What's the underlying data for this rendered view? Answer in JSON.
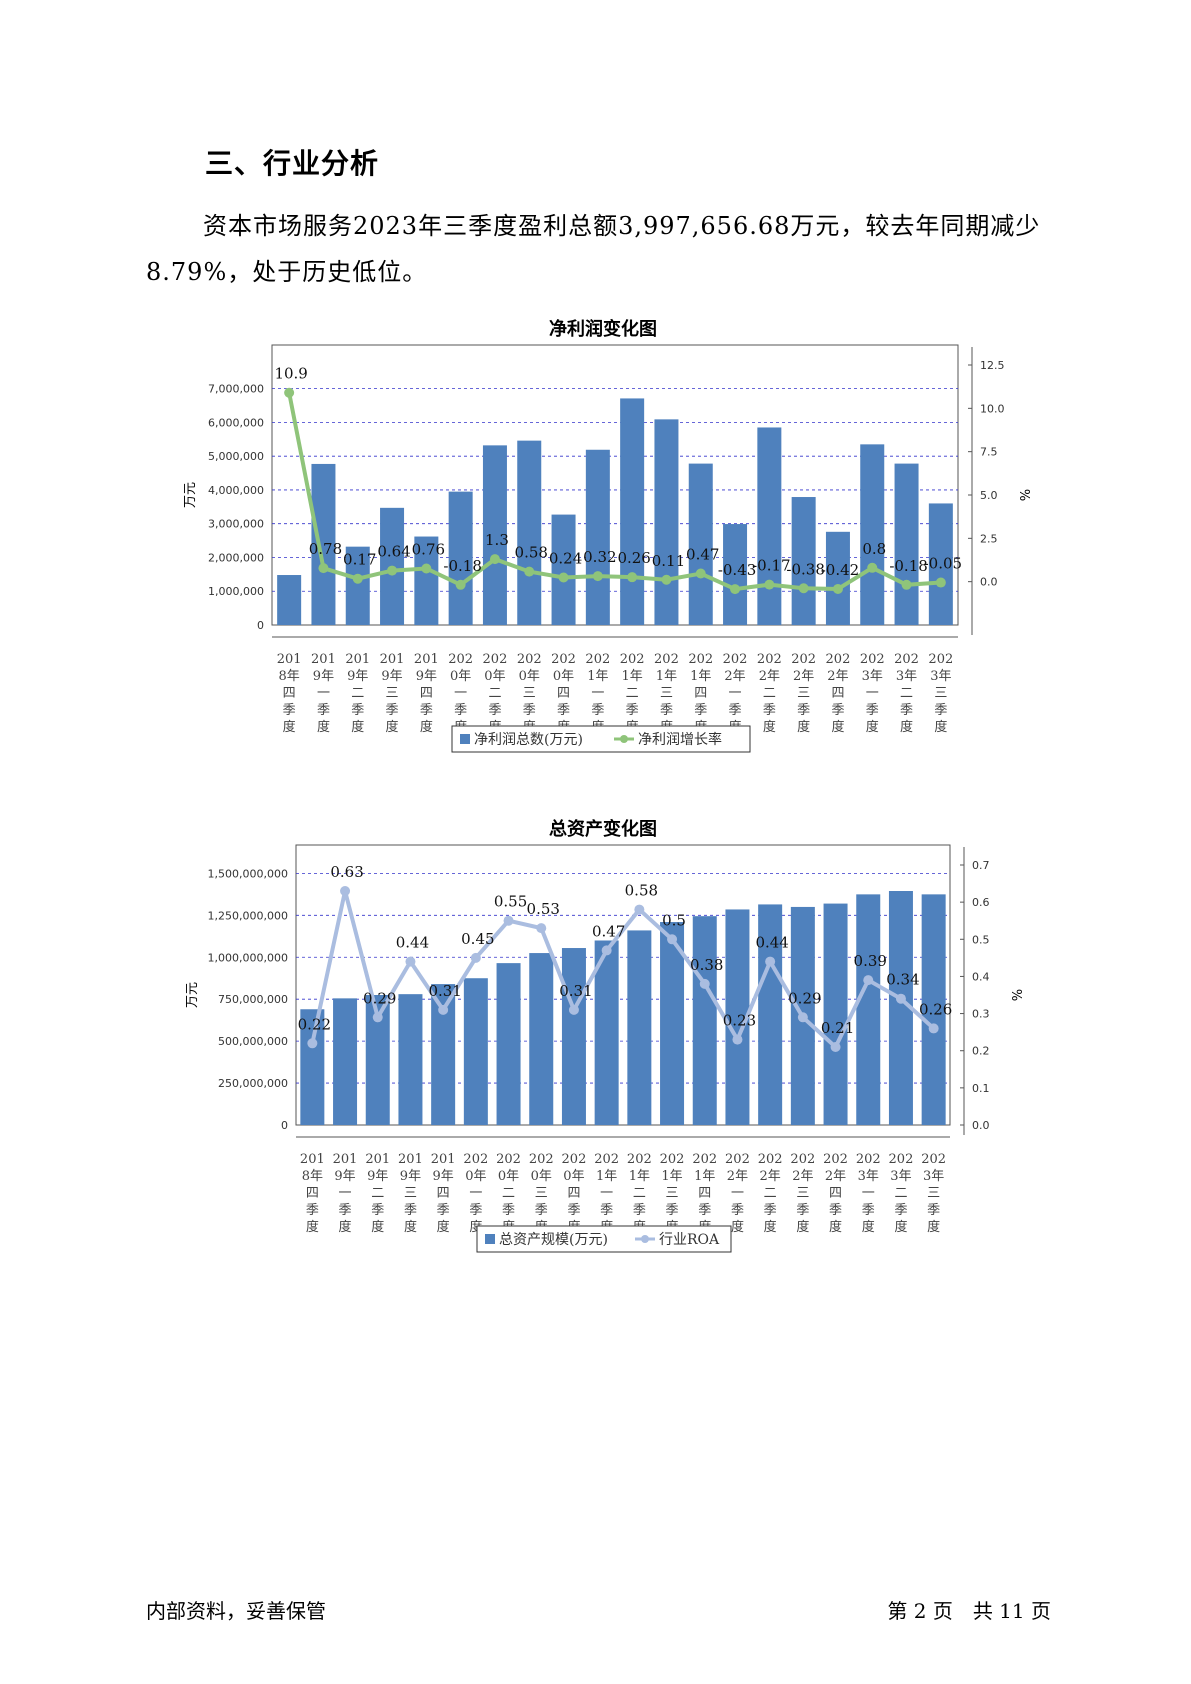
{
  "section_title": "三、行业分析",
  "paragraph": "资本市场服务2023年三季度盈利总额3,997,656.68万元，较去年同期减少8.79%，处于历史低位。",
  "footer": {
    "left": "内部资料，妥善保管",
    "right": "第 2 页　共 11 页"
  },
  "colors": {
    "bar": "#4f81bd",
    "line1": "#8fc47a",
    "line2": "#aabde0",
    "grid": "#3333cc"
  },
  "chart_data": [
    {
      "type": "bar",
      "title": "净利润变化图",
      "ylabel": "万元",
      "y2label": "%",
      "ylim": [
        0,
        7700000
      ],
      "y2lim": [
        -2.5,
        12.5
      ],
      "yticks": [
        0,
        1000000,
        2000000,
        3000000,
        4000000,
        5000000,
        6000000,
        7000000
      ],
      "ytick_labels": [
        "0",
        "1,000,000",
        "2,000,000",
        "3,000,000",
        "4,000,000",
        "5,000,000",
        "6,000,000",
        "7,000,000"
      ],
      "y2ticks": [
        0.0,
        2.5,
        5.0,
        7.5,
        10.0,
        12.5
      ],
      "y2tick_labels": [
        "0.0",
        "2.5",
        "5.0",
        "7.5",
        "10.0",
        "12.5"
      ],
      "categories": [
        "2018年四季度",
        "2019年一季度",
        "2019年二季度",
        "2019年三季度",
        "2019年四季度",
        "2020年一季度",
        "2020年二季度",
        "2020年三季度",
        "2020年四季度",
        "2021年一季度",
        "2021年二季度",
        "2021年三季度",
        "2021年四季度",
        "2022年一季度",
        "2022年二季度",
        "2022年三季度",
        "2022年四季度",
        "2023年一季度",
        "2023年二季度",
        "2023年三季度"
      ],
      "category_labels": [
        [
          "201",
          "8年",
          "四",
          "季",
          "度"
        ],
        [
          "201",
          "9年",
          "一",
          "季",
          "度"
        ],
        [
          "201",
          "9年",
          "二",
          "季",
          "度"
        ],
        [
          "201",
          "9年",
          "三",
          "季",
          "度"
        ],
        [
          "201",
          "9年",
          "四",
          "季",
          "度"
        ],
        [
          "202",
          "0年",
          "一",
          "季",
          "度"
        ],
        [
          "202",
          "0年",
          "二",
          "季",
          "度"
        ],
        [
          "202",
          "0年",
          "三",
          "季",
          "度"
        ],
        [
          "202",
          "0年",
          "四",
          "季",
          "度"
        ],
        [
          "202",
          "1年",
          "一",
          "季",
          "度"
        ],
        [
          "202",
          "1年",
          "二",
          "季",
          "度"
        ],
        [
          "202",
          "1年",
          "三",
          "季",
          "度"
        ],
        [
          "202",
          "1年",
          "四",
          "季",
          "度"
        ],
        [
          "202",
          "2年",
          "一",
          "季",
          "度"
        ],
        [
          "202",
          "2年",
          "二",
          "季",
          "度"
        ],
        [
          "202",
          "2年",
          "三",
          "季",
          "度"
        ],
        [
          "202",
          "2年",
          "四",
          "季",
          "度"
        ],
        [
          "202",
          "3年",
          "一",
          "季",
          "度"
        ],
        [
          "202",
          "3年",
          "二",
          "季",
          "度"
        ],
        [
          "202",
          "3年",
          "三",
          "季",
          "度"
        ]
      ],
      "series": [
        {
          "name": "净利润总数(万元)",
          "kind": "bar",
          "axis": "left",
          "values": [
            1480000,
            4770000,
            2320000,
            3470000,
            2620000,
            3950000,
            5320000,
            5460000,
            3270000,
            5190000,
            6710000,
            6090000,
            4780000,
            2990000,
            5850000,
            3790000,
            2760000,
            5350000,
            4780000,
            3600000
          ]
        },
        {
          "name": "净利润增长率",
          "kind": "line",
          "axis": "right",
          "values": [
            10.9,
            0.78,
            0.17,
            0.64,
            0.76,
            -0.18,
            1.3,
            0.58,
            0.24,
            0.32,
            0.26,
            0.11,
            0.47,
            -0.43,
            -0.17,
            -0.38,
            -0.42,
            0.8,
            -0.18,
            -0.05
          ],
          "labels": [
            "10.9",
            "0.78",
            "0.17",
            "0.64",
            "0.76",
            "-0.18",
            "1.3",
            "0.58",
            "0.24",
            "0.32",
            "0.26",
            "0.11",
            "0.47",
            "-0.43",
            "-0.17",
            "-0.38",
            "-0.42",
            "0.8",
            "-0.18",
            "-0.05"
          ]
        }
      ],
      "legend": "bottom"
    },
    {
      "type": "bar",
      "title": "总资产变化图",
      "ylabel": "万元",
      "y2label": "%",
      "ylim": [
        0,
        1550000000
      ],
      "y2lim": [
        0,
        0.7
      ],
      "yticks": [
        0,
        250000000,
        500000000,
        750000000,
        1000000000,
        1250000000,
        1500000000
      ],
      "ytick_labels": [
        "0",
        "250,000,000",
        "500,000,000",
        "750,000,000",
        "1,000,000,000",
        "1,250,000,000",
        "1,500,000,000"
      ],
      "y2ticks": [
        0.0,
        0.1,
        0.2,
        0.3,
        0.4,
        0.5,
        0.6,
        0.7
      ],
      "y2tick_labels": [
        "0.0",
        "0.1",
        "0.2",
        "0.3",
        "0.4",
        "0.5",
        "0.6",
        "0.7"
      ],
      "categories": [
        "2018年四季度",
        "2019年一季度",
        "2019年二季度",
        "2019年三季度",
        "2019年四季度",
        "2020年一季度",
        "2020年二季度",
        "2020年三季度",
        "2020年四季度",
        "2021年一季度",
        "2021年二季度",
        "2021年三季度",
        "2021年四季度",
        "2022年一季度",
        "2022年二季度",
        "2022年三季度",
        "2022年四季度",
        "2023年一季度",
        "2023年二季度",
        "2023年三季度"
      ],
      "category_labels": [
        [
          "201",
          "8年",
          "四",
          "季",
          "度"
        ],
        [
          "201",
          "9年",
          "一",
          "季",
          "度"
        ],
        [
          "201",
          "9年",
          "二",
          "季",
          "度"
        ],
        [
          "201",
          "9年",
          "三",
          "季",
          "度"
        ],
        [
          "201",
          "9年",
          "四",
          "季",
          "度"
        ],
        [
          "202",
          "0年",
          "一",
          "季",
          "度"
        ],
        [
          "202",
          "0年",
          "二",
          "季",
          "度"
        ],
        [
          "202",
          "0年",
          "三",
          "季",
          "度"
        ],
        [
          "202",
          "0年",
          "四",
          "季",
          "度"
        ],
        [
          "202",
          "1年",
          "一",
          "季",
          "度"
        ],
        [
          "202",
          "1年",
          "二",
          "季",
          "度"
        ],
        [
          "202",
          "1年",
          "三",
          "季",
          "度"
        ],
        [
          "202",
          "1年",
          "四",
          "季",
          "度"
        ],
        [
          "202",
          "2年",
          "一",
          "季",
          "度"
        ],
        [
          "202",
          "2年",
          "二",
          "季",
          "度"
        ],
        [
          "202",
          "2年",
          "三",
          "季",
          "度"
        ],
        [
          "202",
          "2年",
          "四",
          "季",
          "度"
        ],
        [
          "202",
          "3年",
          "一",
          "季",
          "度"
        ],
        [
          "202",
          "3年",
          "二",
          "季",
          "度"
        ],
        [
          "202",
          "3年",
          "三",
          "季",
          "度"
        ]
      ],
      "series": [
        {
          "name": "总资产规模(万元)",
          "kind": "bar",
          "axis": "left",
          "values": [
            690000000,
            755000000,
            775000000,
            780000000,
            840000000,
            875000000,
            965000000,
            1025000000,
            1055000000,
            1100000000,
            1160000000,
            1210000000,
            1245000000,
            1285000000,
            1315000000,
            1300000000,
            1320000000,
            1375000000,
            1395000000,
            1375000000
          ]
        },
        {
          "name": "行业ROA",
          "kind": "line",
          "axis": "right",
          "values": [
            0.22,
            0.63,
            0.29,
            0.44,
            0.31,
            0.45,
            0.55,
            0.53,
            0.31,
            0.47,
            0.58,
            0.5,
            0.38,
            0.23,
            0.44,
            0.29,
            0.21,
            0.39,
            0.34,
            0.26
          ],
          "labels": [
            "0.22",
            "0.63",
            "0.29",
            "0.44",
            "0.31",
            "0.45",
            "0.55",
            "0.53",
            "0.31",
            "0.47",
            "0.58",
            "0.5",
            "0.38",
            "0.23",
            "0.44",
            "0.29",
            "0.21",
            "0.39",
            "0.34",
            "0.26"
          ]
        }
      ],
      "legend": "bottom"
    }
  ]
}
